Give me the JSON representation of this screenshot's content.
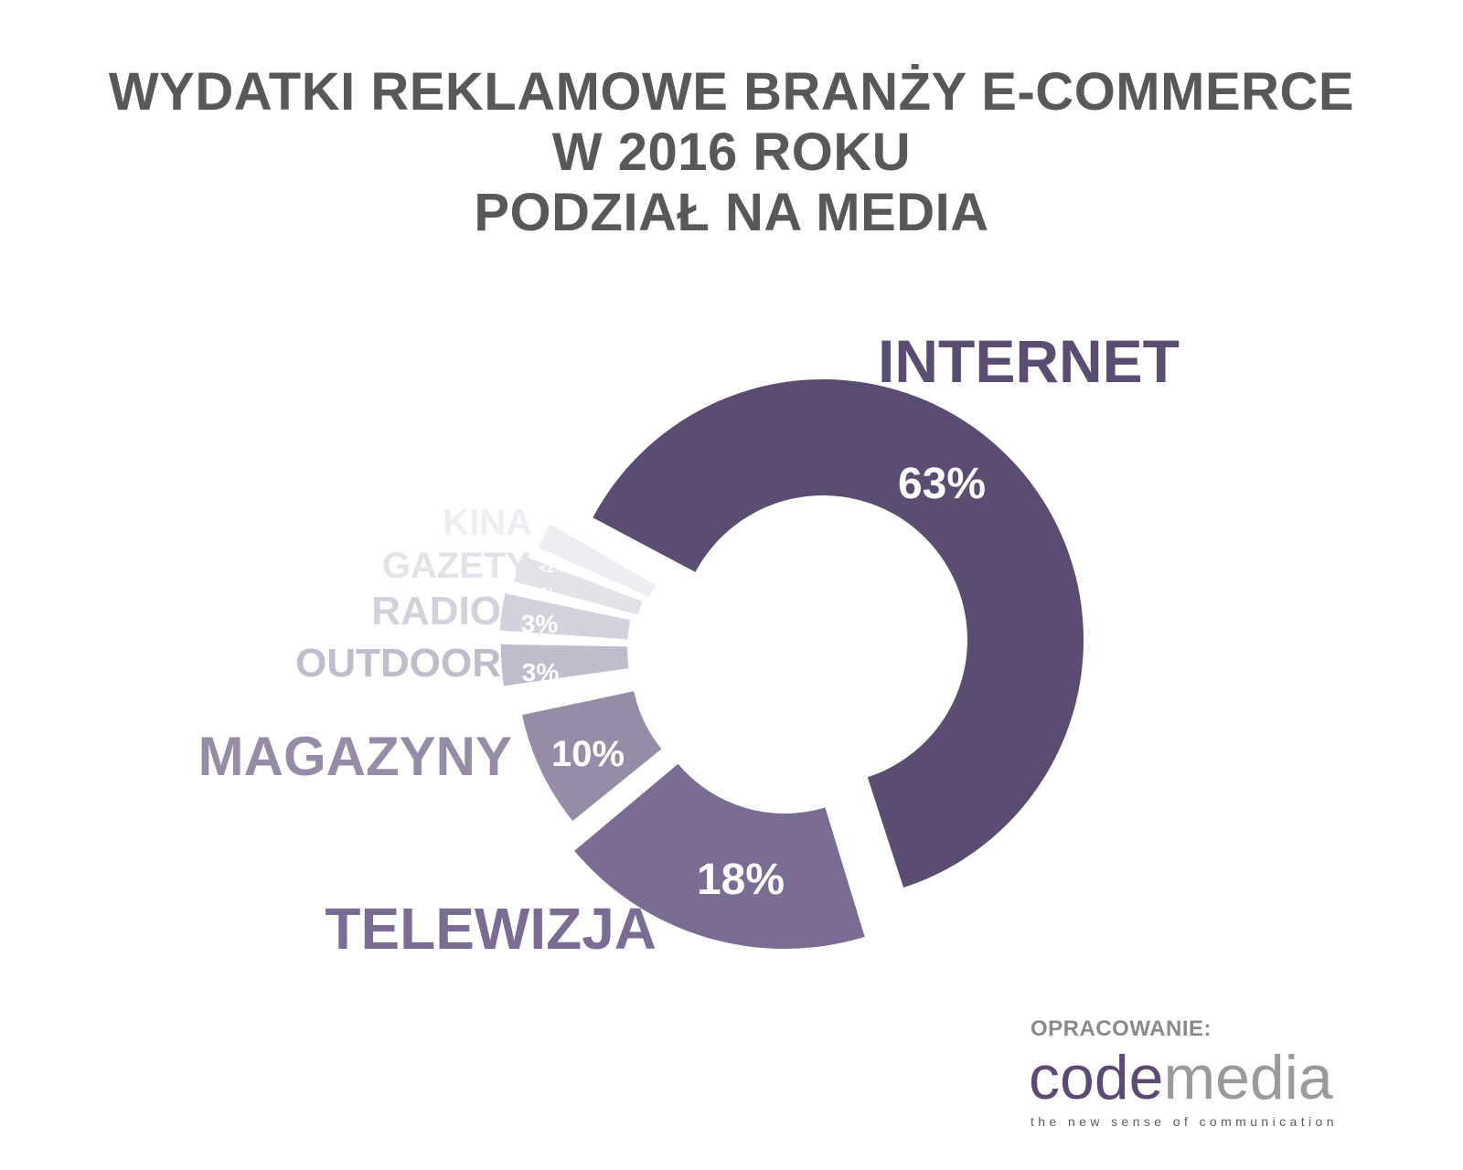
{
  "title": {
    "line1": "WYDATKI REKLAMOWE BRANŻY E-COMMERCE",
    "line2": "W 2016 ROKU",
    "line3": "PODZIAŁ NA MEDIA"
  },
  "chart_data": {
    "type": "pie",
    "title": "WYDATKI REKLAMOWE BRANŻY E-COMMERCE W 2016 ROKU PODZIAŁ NA MEDIA",
    "categories": [
      "INTERNET",
      "TELEWIZJA",
      "MAGAZYNY",
      "OUTDOOR",
      "RADIO",
      "GAZETY",
      "KINA"
    ],
    "values": [
      63,
      18,
      10,
      3,
      3,
      2,
      1.5
    ],
    "value_labels": [
      "63%",
      "18%",
      "10%",
      "3%",
      "3%",
      "2%",
      "<2%"
    ],
    "colors": [
      "#5b4c72",
      "#7b6c93",
      "#978ca8",
      "#c0bccb",
      "#d4d1dc",
      "#e4e2e9",
      "#eeedf2"
    ],
    "label_colors": [
      "#5b4c72",
      "#7b6c93",
      "#978ca8",
      "#c0bccb",
      "#d4d1dc",
      "#e4e2e9",
      "#eeedf2"
    ],
    "value_label_colors": [
      "#ffffff",
      "#ffffff",
      "#ffffff",
      "#ffffff",
      "#ffffff",
      "#ffffff",
      "#ffffff"
    ]
  },
  "credit": {
    "label": "OPRACOWANIE:",
    "brand_code": "code",
    "brand_media": "media",
    "tagline": "the new sense of communication"
  }
}
